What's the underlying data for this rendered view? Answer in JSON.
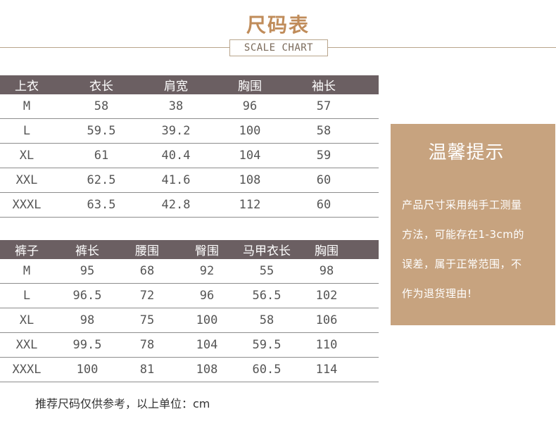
{
  "header": {
    "title": "尺码表",
    "subtitle": "SCALE CHART"
  },
  "tops": {
    "headers": [
      "上衣",
      "衣长",
      "肩宽",
      "胸围",
      "袖长"
    ],
    "rows": [
      [
        "M",
        "58",
        "38",
        "96",
        "57"
      ],
      [
        "L",
        "59.5",
        "39.2",
        "100",
        "58"
      ],
      [
        "XL",
        "61",
        "40.4",
        "104",
        "59"
      ],
      [
        "XXL",
        "62.5",
        "41.6",
        "108",
        "60"
      ],
      [
        "XXXL",
        "63.5",
        "42.8",
        "112",
        "60"
      ]
    ]
  },
  "pants": {
    "headers": [
      "裤子",
      "裤长",
      "腰围",
      "臀围",
      "马甲衣长",
      "胸围"
    ],
    "rows": [
      [
        "M",
        "95",
        "68",
        "92",
        "55",
        "98"
      ],
      [
        "L",
        "96.5",
        "72",
        "96",
        "56.5",
        "102"
      ],
      [
        "XL",
        "98",
        "75",
        "100",
        "58",
        "106"
      ],
      [
        "XXL",
        "99.5",
        "78",
        "104",
        "59.5",
        "110"
      ],
      [
        "XXXL",
        "100",
        "81",
        "108",
        "60.5",
        "114"
      ]
    ]
  },
  "notice": {
    "title": "温馨提示",
    "lines": [
      "产品尺寸采用纯手工测量",
      "方法，可能存在1-3cm的",
      "误差，属于正常范围，不",
      "作为退货理由!"
    ]
  },
  "footer": {
    "text": "推荐尺码仅供参考，以上单位：cm"
  },
  "colors": {
    "title": "#c08c5a",
    "header_bar": "#6b5f62",
    "notice_bg": "#c7a37f"
  }
}
